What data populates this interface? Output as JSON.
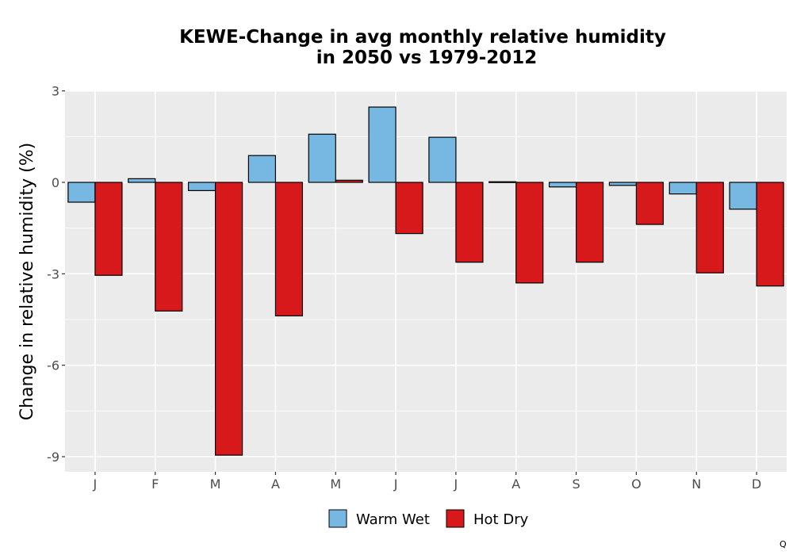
{
  "chart_data": {
    "type": "bar",
    "title_line1": "KEWE-Change in avg monthly relative humidity",
    "title_line2": "in 2050 vs 1979-2012",
    "ylabel": "Change in relative humidity (%)",
    "xlabel": "",
    "categories": [
      "J",
      "F",
      "M",
      "A",
      "M",
      "J",
      "J",
      "A",
      "S",
      "O",
      "N",
      "D"
    ],
    "series": [
      {
        "name": "Warm Wet",
        "color": "#77b8e2",
        "values": [
          -0.65,
          0.12,
          -0.27,
          0.88,
          1.58,
          2.47,
          1.48,
          0.02,
          -0.15,
          -0.1,
          -0.38,
          -0.88
        ]
      },
      {
        "name": "Hot Dry",
        "color": "#d8191c",
        "values": [
          -3.05,
          -4.22,
          -8.95,
          -4.38,
          0.07,
          -1.68,
          -2.62,
          -3.3,
          -2.62,
          -1.38,
          -2.97,
          -3.4
        ]
      }
    ],
    "ylim": [
      -9.5,
      3
    ],
    "yticks": [
      3,
      0,
      -3,
      -6,
      -9
    ],
    "ytick_labels": [
      "3",
      "0",
      "-3",
      "-6",
      "-9"
    ],
    "grid": true,
    "legend_position": "bottom",
    "corner_mark": "Q"
  }
}
